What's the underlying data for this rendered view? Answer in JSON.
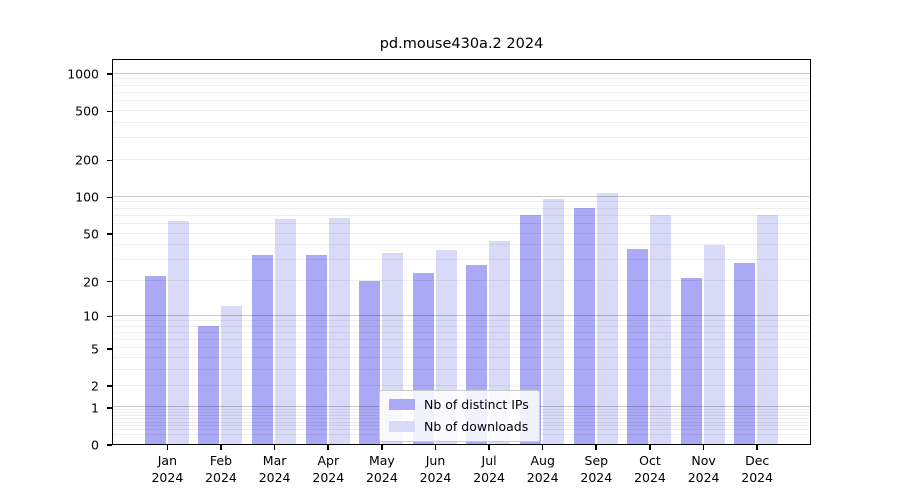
{
  "title": "pd.mouse430a.2 2024",
  "colors": {
    "bar_distinct_ips": "#a9a9f6",
    "bar_downloads": "#d9d9f8",
    "grid_major": "rgba(0,0,0,0.22)",
    "grid_minor": "rgba(0,0,0,0.065)",
    "axis": "#000000",
    "legend_border": "#cccccc",
    "legend_background": "rgba(255,255,255,0.85)"
  },
  "chart_data": {
    "type": "bar",
    "title": "pd.mouse430a.2 2024",
    "categories": [
      {
        "month": "Jan",
        "year": "2024"
      },
      {
        "month": "Feb",
        "year": "2024"
      },
      {
        "month": "Mar",
        "year": "2024"
      },
      {
        "month": "Apr",
        "year": "2024"
      },
      {
        "month": "May",
        "year": "2024"
      },
      {
        "month": "Jun",
        "year": "2024"
      },
      {
        "month": "Jul",
        "year": "2024"
      },
      {
        "month": "Aug",
        "year": "2024"
      },
      {
        "month": "Sep",
        "year": "2024"
      },
      {
        "month": "Oct",
        "year": "2024"
      },
      {
        "month": "Nov",
        "year": "2024"
      },
      {
        "month": "Dec",
        "year": "2024"
      }
    ],
    "series": [
      {
        "name": "Nb of distinct IPs",
        "color": "#a9a9f6",
        "values": [
          22,
          8,
          33,
          33,
          20,
          23,
          27,
          71,
          80,
          37,
          21,
          28
        ]
      },
      {
        "name": "Nb of downloads",
        "color": "#d9d9f8",
        "values": [
          63,
          12,
          65,
          66,
          34,
          36,
          43,
          96,
          106,
          70,
          40,
          70
        ]
      }
    ],
    "yscale": "log1p",
    "yticks": [
      0,
      1,
      2,
      5,
      10,
      20,
      50,
      100,
      200,
      500,
      1000
    ],
    "ylim": [
      0,
      1280
    ],
    "xlabel": "",
    "ylabel": "",
    "grid": true,
    "grid_on_top": true,
    "legend_position": "inside-bottom-center"
  }
}
